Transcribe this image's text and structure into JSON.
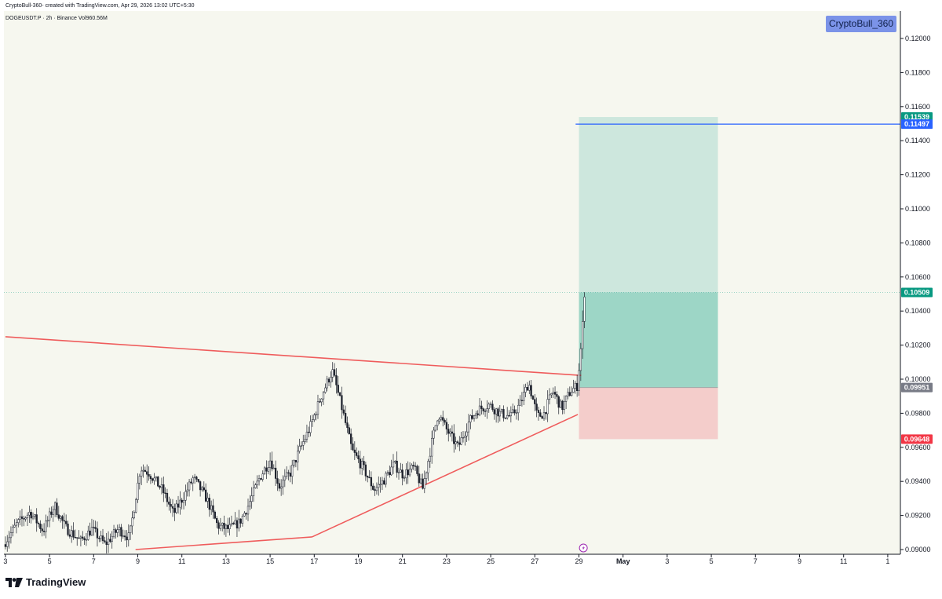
{
  "header": {
    "attribution": "CryptoBull-360- created with TradingView.com, Apr 29, 2026 13:02 UTC+5:30",
    "symbol_info": "DOGEUSDT.P · 2h · Binance  Vol960.56M"
  },
  "watermark": "CryptoBull_360",
  "brand": "TradingView",
  "colors": {
    "background": "#f6f7ef",
    "candle": "#1e222d",
    "trendline": "#ef5c5c",
    "target_line": "#2962ff",
    "profit_zone": "#cde7dd",
    "profit_zone_dark": "#9dd6c6",
    "stop_zone": "#f4cdcb",
    "current_price": "#089981",
    "stop_price": "#f23645",
    "entry_price": "#787b86"
  },
  "chart_data": {
    "type": "candlestick",
    "symbol": "DOGEUSDT.P",
    "interval": "2h",
    "exchange": "Binance",
    "volume_label": "Vol960.56M",
    "ylim": [
      0.0899,
      0.1225
    ],
    "y_ticks": [
      "0.12000",
      "0.11800",
      "0.11600",
      "0.11400",
      "0.11200",
      "0.11000",
      "0.10800",
      "0.10600",
      "0.10400",
      "0.10200",
      "0.10000",
      "0.09800",
      "0.09600",
      "0.09400",
      "0.09200",
      "0.09000"
    ],
    "x_ticks": [
      {
        "label": "3",
        "day": 3
      },
      {
        "label": "5",
        "day": 5
      },
      {
        "label": "7",
        "day": 7
      },
      {
        "label": "9",
        "day": 9
      },
      {
        "label": "11",
        "day": 11
      },
      {
        "label": "13",
        "day": 13
      },
      {
        "label": "15",
        "day": 15
      },
      {
        "label": "17",
        "day": 17
      },
      {
        "label": "19",
        "day": 19
      },
      {
        "label": "21",
        "day": 21
      },
      {
        "label": "23",
        "day": 23
      },
      {
        "label": "25",
        "day": 25
      },
      {
        "label": "27",
        "day": 27
      },
      {
        "label": "29",
        "day": 29
      },
      {
        "label": "May",
        "day": 31
      },
      {
        "label": "3",
        "day": 33
      },
      {
        "label": "5",
        "day": 35
      },
      {
        "label": "7",
        "day": 37
      },
      {
        "label": "9",
        "day": 39
      },
      {
        "label": "11",
        "day": 41
      },
      {
        "label": "1",
        "day": 43
      }
    ],
    "price_labels": [
      {
        "name": "take-profit",
        "value": "0.11539",
        "price": 0.11539,
        "color": "#089981"
      },
      {
        "name": "target-line",
        "value": "0.11497",
        "price": 0.11497,
        "color": "#2962ff"
      },
      {
        "name": "current-price",
        "value": "0.10509",
        "price": 0.10509,
        "color": "#089981"
      },
      {
        "name": "entry",
        "value": "0.09951",
        "price": 0.09951,
        "color": "#787b86"
      },
      {
        "name": "stop-loss",
        "value": "0.09648",
        "price": 0.09648,
        "color": "#f23645"
      }
    ],
    "long_position": {
      "entry": 0.09951,
      "target": 0.11539,
      "stop": 0.09648,
      "current": 0.10509,
      "start_day": 29.0,
      "end_day": 35.3
    },
    "target_line": {
      "price": 0.11497,
      "start_day": 28.85
    },
    "trendlines": [
      {
        "name": "descending-resistance",
        "points": [
          [
            3.0,
            0.10249
          ],
          [
            29.1,
            0.10022
          ]
        ]
      },
      {
        "name": "ascending-support-lower",
        "points": [
          [
            8.9,
            0.09
          ],
          [
            16.9,
            0.09074
          ]
        ]
      },
      {
        "name": "ascending-support-upper",
        "points": [
          [
            16.9,
            0.09074
          ],
          [
            28.95,
            0.09793
          ]
        ]
      }
    ],
    "candle_waypoints": [
      [
        3.0,
        0.0903
      ],
      [
        3.6,
        0.0915
      ],
      [
        4.2,
        0.0922
      ],
      [
        4.8,
        0.0911
      ],
      [
        5.3,
        0.0926
      ],
      [
        5.8,
        0.0913
      ],
      [
        6.5,
        0.0905
      ],
      [
        7.0,
        0.0912
      ],
      [
        7.6,
        0.0903
      ],
      [
        8.2,
        0.0912
      ],
      [
        8.7,
        0.0907
      ],
      [
        9.2,
        0.0948
      ],
      [
        9.6,
        0.0945
      ],
      [
        10.2,
        0.0935
      ],
      [
        10.7,
        0.0921
      ],
      [
        11.2,
        0.0932
      ],
      [
        11.6,
        0.0942
      ],
      [
        12.2,
        0.093
      ],
      [
        12.7,
        0.0914
      ],
      [
        13.2,
        0.0912
      ],
      [
        13.7,
        0.0916
      ],
      [
        14.1,
        0.0926
      ],
      [
        14.6,
        0.0942
      ],
      [
        15.1,
        0.0953
      ],
      [
        15.5,
        0.0937
      ],
      [
        16.0,
        0.0945
      ],
      [
        16.4,
        0.0958
      ],
      [
        16.9,
        0.0972
      ],
      [
        17.4,
        0.099
      ],
      [
        17.9,
        0.1005
      ],
      [
        18.3,
        0.0985
      ],
      [
        18.8,
        0.0958
      ],
      [
        19.3,
        0.0948
      ],
      [
        19.8,
        0.0935
      ],
      [
        20.2,
        0.094
      ],
      [
        20.7,
        0.095
      ],
      [
        21.1,
        0.0944
      ],
      [
        21.6,
        0.0948
      ],
      [
        22.0,
        0.0936
      ],
      [
        22.4,
        0.0962
      ],
      [
        22.7,
        0.098
      ],
      [
        23.1,
        0.097
      ],
      [
        23.6,
        0.096
      ],
      [
        24.1,
        0.0975
      ],
      [
        24.5,
        0.0982
      ],
      [
        25.0,
        0.0985
      ],
      [
        25.5,
        0.098
      ],
      [
        26.0,
        0.0978
      ],
      [
        26.4,
        0.0985
      ],
      [
        26.8,
        0.0998
      ],
      [
        27.2,
        0.0978
      ],
      [
        27.5,
        0.098
      ],
      [
        27.9,
        0.0993
      ],
      [
        28.3,
        0.0983
      ],
      [
        28.7,
        0.0993
      ],
      [
        29.0,
        0.0996
      ],
      [
        29.15,
        0.1015
      ],
      [
        29.25,
        0.1032
      ],
      [
        29.32,
        0.1051
      ]
    ],
    "event_marker_day": 29.2
  }
}
